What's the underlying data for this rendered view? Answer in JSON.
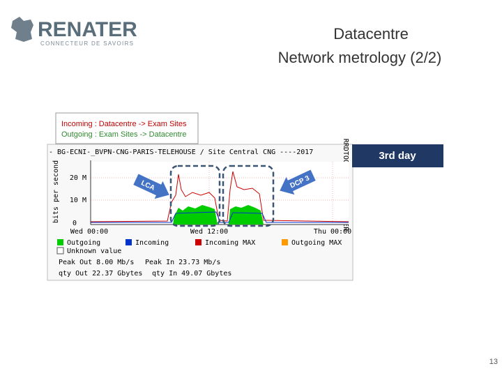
{
  "logo": {
    "name": "RENATER",
    "tagline": "CONNECTEUR DE SAVOIRS"
  },
  "header": {
    "title_line1": "Datacentre",
    "title_line2": "Network metrology (2/2)"
  },
  "key": {
    "incoming": "Incoming : Datacentre -> Exam Sites",
    "outgoing": "Outgoing : Exam Sites -> Datacentre"
  },
  "graph": {
    "title": "- BG-ECNI-_BVPN-CNG-PARIS-TELEHOUSE / Site Central CNG ----2017",
    "y_label": "bits per second",
    "side_label": "RRDTOOL / TOBI OETIKER",
    "y_ticks": [
      "20 M",
      "10 M",
      "0"
    ],
    "x_ticks": [
      "Wed 00:00",
      "Wed 12:00",
      "Thu 00:00"
    ],
    "legend": [
      "Outgoing",
      "Incoming",
      "Incoming MAX",
      "Outgoing MAX",
      "Unknown value"
    ],
    "stats": [
      "Peak Out 8.00 Mb/s",
      "Peak In 23.73 Mb/s",
      "qty Out 22.37 Gbytes",
      "qty In 49.07 Gbytes"
    ]
  },
  "callouts": {
    "lca": "LCA",
    "dcp": "DCP 3",
    "day": "3rd day"
  },
  "page_number": "13"
}
